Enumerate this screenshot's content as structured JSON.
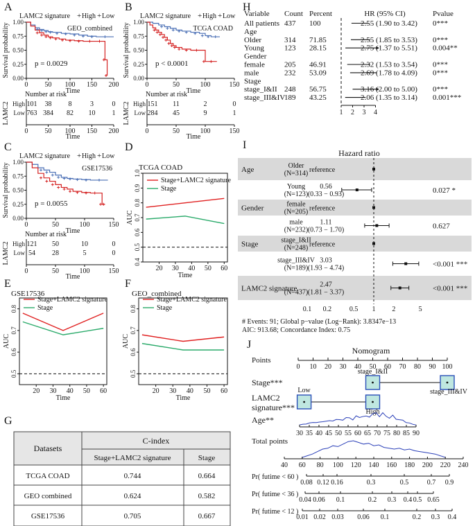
{
  "panel_labels": {
    "A": "A",
    "B": "B",
    "C": "C",
    "D": "D",
    "E": "E",
    "F": "F",
    "G": "G",
    "H": "H",
    "I": "I",
    "J": "J"
  },
  "km_common": {
    "ylabel": "Survival probability",
    "xlabel": "Time",
    "risk_title": "Number at risk",
    "risk_xlabel": "Time",
    "strata_label": "LAMC2",
    "yticks": [
      "0.00",
      "0.25",
      "0.50",
      "0.75",
      "1.00"
    ]
  },
  "km": [
    {
      "id": "A",
      "legend": "LAMC2 signature",
      "high_label": "High",
      "low_label": "Low",
      "cohort": "GEO_combined",
      "pvalue": "p = 0.0029",
      "xticks": [
        "0",
        "50",
        "100",
        "150",
        "200"
      ],
      "xmax": 200,
      "high_curve": [
        [
          0,
          1
        ],
        [
          10,
          0.93
        ],
        [
          20,
          0.86
        ],
        [
          30,
          0.81
        ],
        [
          40,
          0.77
        ],
        [
          50,
          0.74
        ],
        [
          60,
          0.72
        ],
        [
          75,
          0.7
        ],
        [
          90,
          0.68
        ],
        [
          110,
          0.67
        ],
        [
          130,
          0.66
        ],
        [
          160,
          0.66
        ],
        [
          175,
          0.66
        ],
        [
          180,
          0.33
        ],
        [
          185,
          0.05
        ]
      ],
      "low_curve": [
        [
          0,
          1
        ],
        [
          10,
          0.95
        ],
        [
          20,
          0.9
        ],
        [
          30,
          0.87
        ],
        [
          40,
          0.85
        ],
        [
          50,
          0.83
        ],
        [
          60,
          0.82
        ],
        [
          80,
          0.8
        ],
        [
          100,
          0.79
        ],
        [
          120,
          0.77
        ],
        [
          140,
          0.75
        ],
        [
          160,
          0.74
        ],
        [
          200,
          0.74
        ]
      ],
      "risk_high": [
        "101",
        "38",
        "8",
        "3",
        "0"
      ],
      "risk_low": [
        "763",
        "384",
        "82",
        "10",
        "1"
      ]
    },
    {
      "id": "B",
      "legend": "LAMC2 signature",
      "high_label": "High",
      "low_label": "Low",
      "cohort": "TCGA COAD",
      "pvalue": "p < 0.0001",
      "xticks": [
        "0",
        "50",
        "100",
        "150"
      ],
      "xmax": 150,
      "high_curve": [
        [
          0,
          1
        ],
        [
          5,
          0.95
        ],
        [
          10,
          0.9
        ],
        [
          15,
          0.86
        ],
        [
          20,
          0.82
        ],
        [
          25,
          0.78
        ],
        [
          30,
          0.73
        ],
        [
          35,
          0.68
        ],
        [
          40,
          0.62
        ],
        [
          45,
          0.58
        ],
        [
          50,
          0.55
        ],
        [
          60,
          0.52
        ],
        [
          75,
          0.5
        ],
        [
          95,
          0.5
        ],
        [
          100,
          0.3
        ],
        [
          120,
          0.3
        ]
      ],
      "low_curve": [
        [
          0,
          1
        ],
        [
          10,
          0.98
        ],
        [
          20,
          0.95
        ],
        [
          30,
          0.92
        ],
        [
          40,
          0.89
        ],
        [
          50,
          0.86
        ],
        [
          60,
          0.84
        ],
        [
          75,
          0.82
        ],
        [
          90,
          0.8
        ],
        [
          100,
          0.76
        ],
        [
          110,
          0.74
        ],
        [
          125,
          0.74
        ]
      ],
      "risk_high": [
        "151",
        "11",
        "2",
        "0"
      ],
      "risk_low": [
        "284",
        "45",
        "9",
        "1"
      ]
    },
    {
      "id": "C",
      "legend": "LAMC2 signature",
      "high_label": "High",
      "low_label": "Low",
      "cohort": "GSE17536",
      "pvalue": "p = 0.0055",
      "xticks": [
        "0",
        "50",
        "100",
        "150"
      ],
      "xmax": 150,
      "high_curve": [
        [
          0,
          1
        ],
        [
          10,
          0.9
        ],
        [
          20,
          0.8
        ],
        [
          30,
          0.72
        ],
        [
          40,
          0.66
        ],
        [
          50,
          0.6
        ],
        [
          60,
          0.55
        ],
        [
          70,
          0.52
        ],
        [
          80,
          0.48
        ],
        [
          95,
          0.46
        ],
        [
          110,
          0.45
        ],
        [
          125,
          0.45
        ],
        [
          130,
          0.25
        ],
        [
          135,
          0.25
        ]
      ],
      "low_curve": [
        [
          0,
          1
        ],
        [
          10,
          0.96
        ],
        [
          20,
          0.9
        ],
        [
          30,
          0.86
        ],
        [
          40,
          0.82
        ],
        [
          50,
          0.77
        ],
        [
          60,
          0.73
        ],
        [
          70,
          0.71
        ],
        [
          80,
          0.7
        ],
        [
          95,
          0.69
        ],
        [
          110,
          0.68
        ],
        [
          140,
          0.68
        ]
      ],
      "risk_high": [
        "121",
        "50",
        "10",
        "0"
      ],
      "risk_low": [
        "54",
        "28",
        "5",
        "0"
      ]
    }
  ],
  "auc_charts": [
    {
      "id": "D",
      "chart_data": {
        "type": "line",
        "title": "TCGA COAD",
        "xlabel": "Time",
        "ylabel": "AUC",
        "x": [
          12,
          36,
          60
        ],
        "xlim": [
          10,
          62
        ],
        "ylim": [
          0.4,
          1.0
        ],
        "yticks": [
          "0.4",
          "0.5",
          "0.6",
          "0.7",
          "0.8",
          "0.9",
          "1.0"
        ],
        "xticks": [
          "20",
          "30",
          "40",
          "50",
          "60"
        ],
        "series": [
          {
            "name": "Stage+LAMC2 signature",
            "color": "#e02020",
            "values": [
              0.77,
              0.8,
              0.83
            ]
          },
          {
            "name": "Stage",
            "color": "#2aaa6a",
            "values": [
              0.69,
              0.71,
              0.66
            ]
          }
        ],
        "reference": 0.5
      }
    },
    {
      "id": "E",
      "chart_data": {
        "type": "line",
        "title": "GSE17536",
        "xlabel": "Time",
        "ylabel": "AUC",
        "x": [
          12,
          36,
          60
        ],
        "xlim": [
          10,
          62
        ],
        "ylim": [
          0.45,
          0.85
        ],
        "yticks": [
          "0.5",
          "0.6",
          "0.7",
          "0.8"
        ],
        "xticks": [
          "20",
          "30",
          "40",
          "50",
          "60"
        ],
        "series": [
          {
            "name": "Stage+LAMC2 signature",
            "color": "#e02020",
            "values": [
              0.78,
              0.7,
              0.78
            ]
          },
          {
            "name": "Stage",
            "color": "#2aaa6a",
            "values": [
              0.74,
              0.68,
              0.71
            ]
          }
        ],
        "reference": 0.5
      }
    },
    {
      "id": "F",
      "chart_data": {
        "type": "line",
        "title": "GEO_combined",
        "xlabel": "Time",
        "ylabel": "AUC",
        "x": [
          12,
          36,
          60
        ],
        "xlim": [
          10,
          62
        ],
        "ylim": [
          0.45,
          0.85
        ],
        "yticks": [
          "0.5",
          "0.6",
          "0.7",
          "0.8"
        ],
        "xticks": [
          "20",
          "30",
          "40",
          "50",
          "60"
        ],
        "series": [
          {
            "name": "Stage+LAMC2 signature",
            "color": "#e02020",
            "values": [
              0.68,
              0.65,
              0.67
            ]
          },
          {
            "name": "Stage",
            "color": "#2aaa6a",
            "values": [
              0.64,
              0.61,
              0.61
            ]
          }
        ],
        "reference": 0.5
      }
    }
  ],
  "table_g": {
    "header_datasets": "Datasets",
    "header_cindex": "C-index",
    "sub_headers": [
      "Stage+LAMC2 signature",
      "Stage"
    ],
    "rows": [
      [
        "TCGA COAD",
        "0.744",
        "0.664"
      ],
      [
        "GEO combined",
        "0.624",
        "0.582"
      ],
      [
        "GSE17536",
        "0.705",
        "0.667"
      ]
    ]
  },
  "forest_h": {
    "headers": [
      "Variable",
      "Count",
      "Percent",
      "HR (95% CI)",
      "Pvalue"
    ],
    "rows": [
      {
        "var": "All patients",
        "count": "437",
        "pct": "100",
        "hr": 2.55,
        "lo": 1.9,
        "hi": 3.42,
        "hr_text": "2.55 (1.90 to 3.42)",
        "p": "0***"
      },
      {
        "var": "Age",
        "header": true
      },
      {
        "var": "Older",
        "count": "314",
        "pct": "71.85",
        "hr": 2.55,
        "lo": 1.85,
        "hi": 3.53,
        "hr_text": "2.55 (1.85 to 3.53)",
        "p": "0***"
      },
      {
        "var": "Young",
        "count": "123",
        "pct": "28.15",
        "hr": 2.75,
        "lo": 1.37,
        "hi": 5.51,
        "hr_text": "2.75 (1.37 to 5.51)",
        "p": "0.004**"
      },
      {
        "var": "Gender",
        "header": true
      },
      {
        "var": "female",
        "count": "205",
        "pct": "46.91",
        "hr": 2.32,
        "lo": 1.53,
        "hi": 3.54,
        "hr_text": "2.32 (1.53 to 3.54)",
        "p": "0***"
      },
      {
        "var": "male",
        "count": "232",
        "pct": "53.09",
        "hr": 2.69,
        "lo": 1.78,
        "hi": 4.09,
        "hr_text": "2.69 (1.78 to 4.09)",
        "p": "0***"
      },
      {
        "var": "Stage",
        "header": true
      },
      {
        "var": "stage_I&II",
        "count": "248",
        "pct": "56.75",
        "hr": 3.16,
        "lo": 2.0,
        "hi": 5.0,
        "hr_text": "3.16 (2.00 to 5.00)",
        "p": "0***"
      },
      {
        "var": "stage_III&IV",
        "count": "189",
        "pct": "43.25",
        "hr": 2.06,
        "lo": 1.35,
        "hi": 3.14,
        "hr_text": "2.06 (1.35 to 3.14)",
        "p": "0.001***"
      }
    ],
    "axis_ticks": [
      "1",
      "2",
      "3",
      "4"
    ]
  },
  "forest_i": {
    "title": "Hazard ratio",
    "rows": [
      {
        "var": "Age",
        "sub": "Older",
        "n": "(N=314)",
        "ref": "reference",
        "hr": 1.0,
        "lo": 1.0,
        "hi": 1.0,
        "p": "",
        "shade": true
      },
      {
        "var": "",
        "sub": "Young",
        "n": "(N=123)",
        "est": "0.56",
        "ci": "(0.33 − 0.93)",
        "hr": 0.56,
        "lo": 0.33,
        "hi": 0.93,
        "p": "0.027 *",
        "shade": false
      },
      {
        "var": "Gender",
        "sub": "female",
        "n": "(N=205)",
        "ref": "reference",
        "hr": 1.0,
        "lo": 1.0,
        "hi": 1.0,
        "p": "",
        "shade": true
      },
      {
        "var": "",
        "sub": "male",
        "n": "(N=232)",
        "est": "1.11",
        "ci": "(0.73 − 1.70)",
        "hr": 1.11,
        "lo": 0.73,
        "hi": 1.7,
        "p": "0.627",
        "shade": false
      },
      {
        "var": "Stage",
        "sub": "stage_I&II",
        "n": "(N=248)",
        "ref": "reference",
        "hr": 1.0,
        "lo": 1.0,
        "hi": 1.0,
        "p": "",
        "shade": true
      },
      {
        "var": "",
        "sub": "stage_III&IV",
        "n": "(N=189)",
        "est": "3.03",
        "ci": "(1.93 − 4.74)",
        "hr": 3.03,
        "lo": 1.93,
        "hi": 4.74,
        "p": "<0.001 ***",
        "shade": false
      },
      {
        "var": "LAMC2 signature",
        "sub": "",
        "n": "(N=437)",
        "est": "2.47",
        "ci": "(1.81 − 3.37)",
        "hr": 2.47,
        "lo": 1.81,
        "hi": 3.37,
        "p": "<0.001 ***",
        "shade": true
      }
    ],
    "axis_ticks": [
      "0.1",
      "0.2",
      "0.5",
      "1",
      "2",
      "5"
    ],
    "footer1": "# Events: 91; Global p−value (Log−Rank): 3.8347e−13",
    "footer2": "AIC: 913.68; Concordance Index: 0.75"
  },
  "nomogram": {
    "title": "Nomogram",
    "rows_labels": {
      "points": "Points",
      "stage": "Stage***",
      "lamc2": "LAMC2 signature***",
      "age": "Age**",
      "total": "Total points",
      "p60": "Pr( futime < 60 )",
      "p36": "Pr( futime < 36 )",
      "p12": "Pr( futime < 12 )"
    },
    "points_ticks": [
      "0",
      "10",
      "20",
      "30",
      "40",
      "50",
      "60",
      "70",
      "80",
      "90",
      "100"
    ],
    "stage_levels": [
      "stage_I&II",
      "stage_III&IV"
    ],
    "lamc2_levels": [
      "Low",
      "High"
    ],
    "age_ticks": [
      "30",
      "35",
      "40",
      "45",
      "50",
      "55",
      "60",
      "65",
      "70",
      "75",
      "80",
      "85",
      "90"
    ],
    "total_ticks": [
      "40",
      "60",
      "80",
      "100",
      "120",
      "140",
      "160",
      "180",
      "200",
      "220",
      "240"
    ],
    "p60_ticks": [
      "0.08",
      "0.12",
      "0.16",
      "0.3",
      "0.5",
      "0.7",
      "0.9"
    ],
    "p36_ticks": [
      "0.04",
      "0.06",
      "0.1",
      "0.2",
      "0.3",
      "0.4",
      "0.5",
      "0.65"
    ],
    "p12_ticks": [
      "0.01",
      "0.02",
      "0.03",
      "0.06",
      "0.1",
      "0.2",
      "0.3",
      "0.4"
    ]
  }
}
